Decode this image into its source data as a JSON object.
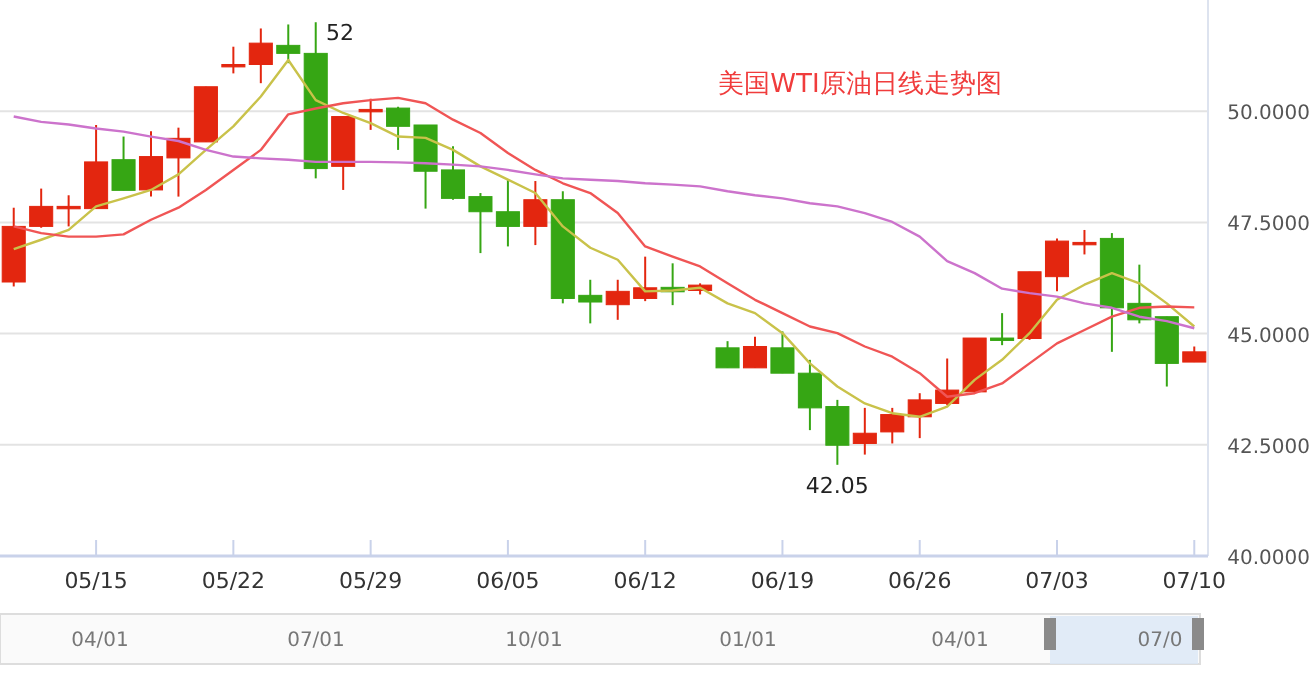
{
  "chart_data": {
    "type": "candlestick",
    "title": "美国WTI原油日线走势图",
    "categories": [
      null,
      null,
      null,
      "05/15",
      null,
      null,
      null,
      null,
      "05/22",
      null,
      null,
      null,
      null,
      "05/29",
      null,
      null,
      null,
      null,
      "06/05",
      null,
      null,
      null,
      null,
      "06/12",
      null,
      null,
      null,
      null,
      "06/19",
      null,
      null,
      null,
      null,
      "06/26",
      null,
      null,
      null,
      null,
      "07/03",
      null,
      null,
      null,
      null,
      "07/10"
    ],
    "ohlc": [
      [
        46.16,
        47.83,
        46.06,
        47.41
      ],
      [
        47.41,
        48.26,
        47.38,
        47.86
      ],
      [
        47.83,
        48.11,
        47.41,
        47.86
      ],
      [
        47.81,
        49.69,
        47.81,
        48.86
      ],
      [
        48.91,
        49.43,
        48.22,
        48.22
      ],
      [
        48.23,
        49.55,
        48.08,
        48.98
      ],
      [
        48.95,
        49.63,
        48.08,
        49.39
      ],
      [
        49.31,
        50.55,
        49.31,
        50.55
      ],
      [
        51.0,
        51.45,
        50.85,
        51.05
      ],
      [
        51.05,
        51.86,
        50.63,
        51.53
      ],
      [
        51.48,
        51.95,
        51.08,
        51.3
      ],
      [
        51.3,
        52,
        48.49,
        48.71
      ],
      [
        48.76,
        49.88,
        48.23,
        49.88
      ],
      [
        50.0,
        50.28,
        49.58,
        50.04
      ],
      [
        50.07,
        50.1,
        49.13,
        49.66
      ],
      [
        49.69,
        49.69,
        47.81,
        48.65
      ],
      [
        48.68,
        49.21,
        48.01,
        48.04
      ],
      [
        48.08,
        48.16,
        46.81,
        47.74
      ],
      [
        47.74,
        48.46,
        46.96,
        47.41
      ],
      [
        47.41,
        48.43,
        46.99,
        48.01
      ],
      [
        48.01,
        48.2,
        45.68,
        45.79
      ],
      [
        45.86,
        46.21,
        45.23,
        45.71
      ],
      [
        45.65,
        46.21,
        45.31,
        45.95
      ],
      [
        45.79,
        46.73,
        45.73,
        46.03
      ],
      [
        46.04,
        46.58,
        45.64,
        45.94
      ],
      [
        45.97,
        46.13,
        45.88,
        46.09
      ],
      [
        44.68,
        44.83,
        44.23,
        44.23
      ],
      [
        44.23,
        44.93,
        44.23,
        44.71
      ],
      [
        44.68,
        45.05,
        44.11,
        44.11
      ],
      [
        44.11,
        44.41,
        42.83,
        43.33
      ],
      [
        43.36,
        43.51,
        42.05,
        42.49
      ],
      [
        42.53,
        43.33,
        42.28,
        42.76
      ],
      [
        42.79,
        43.33,
        42.53,
        43.18
      ],
      [
        43.13,
        43.66,
        42.65,
        43.51
      ],
      [
        43.43,
        44.44,
        43.39,
        43.73
      ],
      [
        43.69,
        44.9,
        43.66,
        44.9
      ],
      [
        44.9,
        45.46,
        44.74,
        44.87
      ],
      [
        44.89,
        46.39,
        44.86,
        46.39
      ],
      [
        46.28,
        47.14,
        45.95,
        47.08
      ],
      [
        47.0,
        47.33,
        46.78,
        47.05
      ],
      [
        47.14,
        47.26,
        44.59,
        45.58
      ],
      [
        45.68,
        46.55,
        45.23,
        45.31
      ],
      [
        45.38,
        45.38,
        43.81,
        44.33
      ],
      [
        44.36,
        44.71,
        44.36,
        44.59
      ]
    ],
    "colors": [
      "#e3260f",
      "#e3260f",
      "#e3260f",
      "#e3260f",
      "#36a614",
      "#e3260f",
      "#e3260f",
      "#e3260f",
      "#e3260f",
      "#e3260f",
      "#36a614",
      "#36a614",
      "#e3260f",
      "#e3260f",
      "#36a614",
      "#36a614",
      "#36a614",
      "#36a614",
      "#36a614",
      "#e3260f",
      "#36a614",
      "#36a614",
      "#e3260f",
      "#e3260f",
      "#36a614",
      "#e3260f",
      "#36a614",
      "#e3260f",
      "#36a614",
      "#36a614",
      "#36a614",
      "#e3260f",
      "#e3260f",
      "#e3260f",
      "#e3260f",
      "#e3260f",
      "#36a614",
      "#e3260f",
      "#e3260f",
      "#e3260f",
      "#36a614",
      "#36a614",
      "#36a614",
      "#e3260f"
    ],
    "series": [
      {
        "type": "line",
        "color": "#c9c24a",
        "values": [
          46.9,
          47.11,
          47.33,
          47.86,
          48.04,
          48.23,
          48.58,
          49.13,
          49.66,
          50.33,
          51.15,
          50.25,
          49.96,
          49.73,
          49.43,
          49.4,
          49.13,
          48.76,
          48.46,
          48.16,
          47.41,
          46.93,
          46.66,
          45.95,
          45.97,
          46.03,
          45.68,
          45.46,
          45.01,
          44.33,
          43.81,
          43.43,
          43.21,
          43.13,
          43.36,
          43.96,
          44.41,
          45.01,
          45.76,
          46.1,
          46.36,
          46.13,
          45.68,
          45.16
        ]
      },
      {
        "type": "line",
        "color": "#f05555",
        "values": [
          47.41,
          47.26,
          47.18,
          47.18,
          47.23,
          47.56,
          47.83,
          48.23,
          48.68,
          49.13,
          49.93,
          50.06,
          50.18,
          50.25,
          50.3,
          50.18,
          49.81,
          49.51,
          49.06,
          48.68,
          48.38,
          48.16,
          47.71,
          46.96,
          46.73,
          46.51,
          46.13,
          45.76,
          45.46,
          45.16,
          45.01,
          44.71,
          44.48,
          44.11,
          43.58,
          43.66,
          43.88,
          44.33,
          44.78,
          45.08,
          45.38,
          45.58,
          45.61,
          45.59
        ]
      },
      {
        "type": "line",
        "color": "#cc73cc",
        "values": [
          49.88,
          49.76,
          49.7,
          49.61,
          49.54,
          49.43,
          49.33,
          49.13,
          48.98,
          48.94,
          48.91,
          48.86,
          48.86,
          48.86,
          48.85,
          48.83,
          48.8,
          48.76,
          48.68,
          48.58,
          48.49,
          48.46,
          48.43,
          48.38,
          48.35,
          48.31,
          48.2,
          48.11,
          48.04,
          47.93,
          47.86,
          47.71,
          47.51,
          47.18,
          46.63,
          46.36,
          46.01,
          45.91,
          45.83,
          45.68,
          45.58,
          45.38,
          45.28,
          45.12
        ]
      }
    ],
    "ylim": [
      40,
      52.5
    ],
    "yticks": [
      {
        "value": 40,
        "label": "40.0000"
      },
      {
        "value": 42.5,
        "label": "42.5000"
      },
      {
        "value": 45,
        "label": "45.0000"
      },
      {
        "value": 47.5,
        "label": "47.5000"
      },
      {
        "value": 50,
        "label": "50.0000"
      }
    ],
    "grid": "y",
    "annotations": [
      "52",
      {
        "text": "42.05",
        "y": 42.05
      },
      "04/01",
      "07/01",
      "10/01",
      "01/01",
      "04/01",
      "07/0"
    ]
  }
}
